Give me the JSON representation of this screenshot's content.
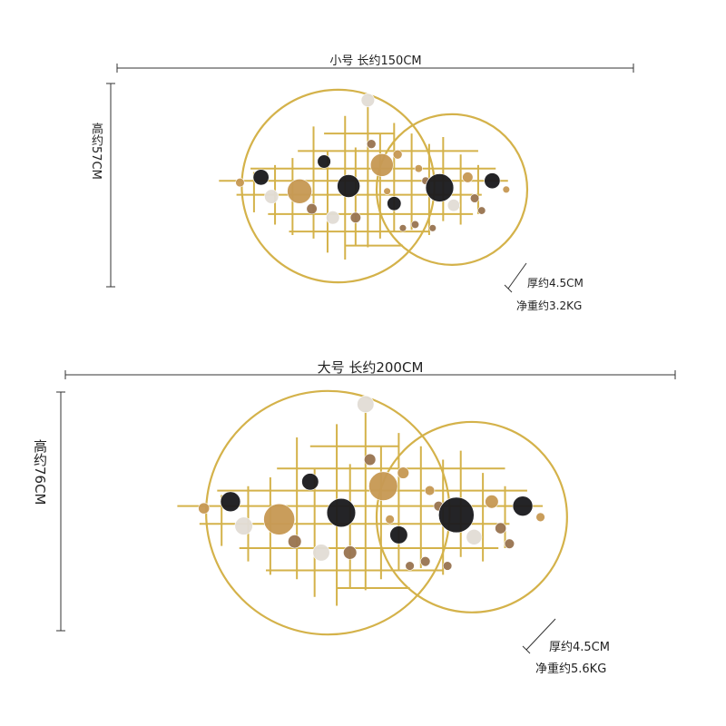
{
  "small": {
    "width_label": "小号 长约150CM",
    "height_label": "高约57CM",
    "thickness_label": "厚约4.5CM",
    "weight_label": "净重约3.2KG"
  },
  "large": {
    "width_label": "大号 长约200CM",
    "height_label": "高约76CM",
    "thickness_label": "厚约4.5CM",
    "weight_label": "净重约5.6KG"
  },
  "colors": {
    "frame": "#d4b24a",
    "bronze": "#9a7552",
    "gold": "#c79a55",
    "black": "#1c1c1f",
    "silver": "#e2ddd6",
    "dim_line": "#333333"
  }
}
